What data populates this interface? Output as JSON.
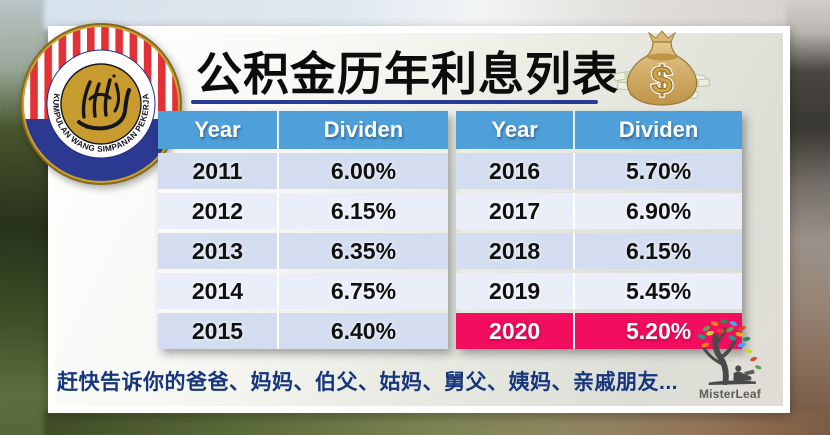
{
  "title": "公积金历年利息列表",
  "footer_text": "赶快告诉你的爸爸、妈妈、伯父、姑妈、舅父、姨妈、亲戚朋友...",
  "watermark": {
    "label": "MisterLeaf"
  },
  "kwsp_logo": {
    "ring_text": "KUMPULAN WANG SIMPANAN PEKERJA"
  },
  "money_bag_icon": {
    "symbol": "$"
  },
  "tables": [
    {
      "headers": [
        "Year",
        "Dividen"
      ],
      "rows": [
        [
          "2011",
          "6.00%"
        ],
        [
          "2012",
          "6.15%"
        ],
        [
          "2013",
          "6.35%"
        ],
        [
          "2014",
          "6.75%"
        ],
        [
          "2015",
          "6.40%"
        ]
      ],
      "highlight_row": null
    },
    {
      "headers": [
        "Year",
        "Dividen"
      ],
      "rows": [
        [
          "2016",
          "5.70%"
        ],
        [
          "2017",
          "6.90%"
        ],
        [
          "2018",
          "6.15%"
        ],
        [
          "2019",
          "5.45%"
        ],
        [
          "2020",
          "5.20%"
        ]
      ],
      "highlight_row": 4
    }
  ],
  "colors": {
    "header_blue": "#4F9FD8",
    "row_odd": "#D3DDEF",
    "row_even": "#E9EEF8",
    "highlight_pink": "#F20D5E",
    "underline_navy": "#2B3A94",
    "footer_navy": "#16357D",
    "logo_red": "#E23137",
    "logo_blue": "#2B3990",
    "logo_gold": "#C79B2D"
  },
  "chart_data": {
    "type": "table",
    "title": "公积金历年利息列表 (EPF / KWSP dividend rate by year)",
    "categories": [
      "2011",
      "2012",
      "2013",
      "2014",
      "2015",
      "2016",
      "2017",
      "2018",
      "2019",
      "2020"
    ],
    "values": [
      6.0,
      6.15,
      6.35,
      6.75,
      6.4,
      5.7,
      6.9,
      6.15,
      5.45,
      5.2
    ],
    "unit": "%",
    "columns": [
      "Year",
      "Dividen"
    ],
    "highlight": {
      "year": "2020",
      "value": 5.2
    }
  }
}
